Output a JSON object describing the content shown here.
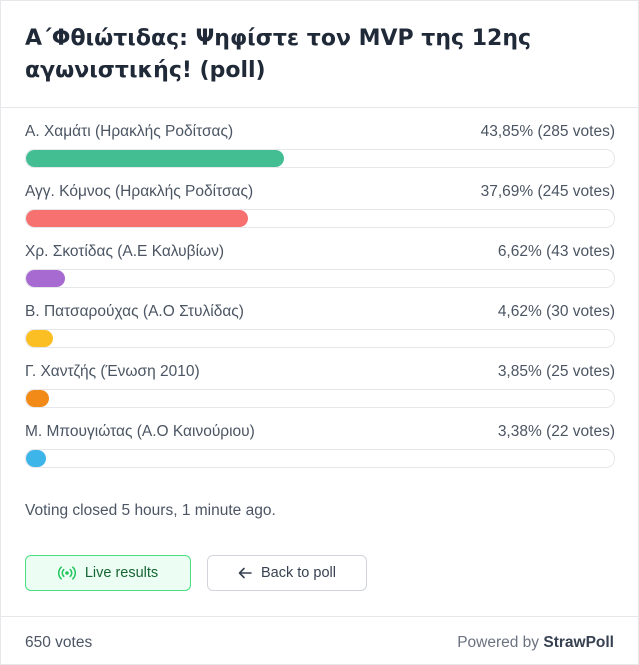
{
  "poll": {
    "title": "Α΄Φθιώτιδας: Ψηφίστε τον MVP της 12ης αγωνιστικής! (poll)",
    "options": [
      {
        "label": "Α. Χαμάτι (Ηρακλής Ροδίτσας)",
        "stats": "43,85% (285 votes)",
        "percent": 43.85,
        "color": "#43be93"
      },
      {
        "label": "Αγγ. Κόμνος (Ηρακλής Ροδίτσας)",
        "stats": "37,69% (245 votes)",
        "percent": 37.69,
        "color": "#f87171"
      },
      {
        "label": "Χρ. Σκοτίδας (Α.Ε Καλυβίων)",
        "stats": "6,62% (43 votes)",
        "percent": 6.62,
        "color": "#a66ad0"
      },
      {
        "label": "Β. Πατσαρούχας (Α.Ο Στυλίδας)",
        "stats": "4,62% (30 votes)",
        "percent": 4.62,
        "color": "#fbbf24"
      },
      {
        "label": "Γ. Χαντζής (Ένωση 2010)",
        "stats": "3,85% (25 votes)",
        "percent": 3.85,
        "color": "#f28a18"
      },
      {
        "label": "Μ. Μπουγιώτας (Α.Ο Καινούριου)",
        "stats": "3,38% (22 votes)",
        "percent": 3.38,
        "color": "#3db5e8"
      }
    ],
    "status_text": "Voting closed 5 hours, 1 minute ago."
  },
  "buttons": {
    "live_results_label": "Live results",
    "live_results_icon": "broadcast-icon",
    "back_label": "Back to poll",
    "back_icon": "arrow-left-icon"
  },
  "footer": {
    "votes_text": "650 votes",
    "powered_prefix": "Powered by",
    "brand": "StrawPoll"
  }
}
